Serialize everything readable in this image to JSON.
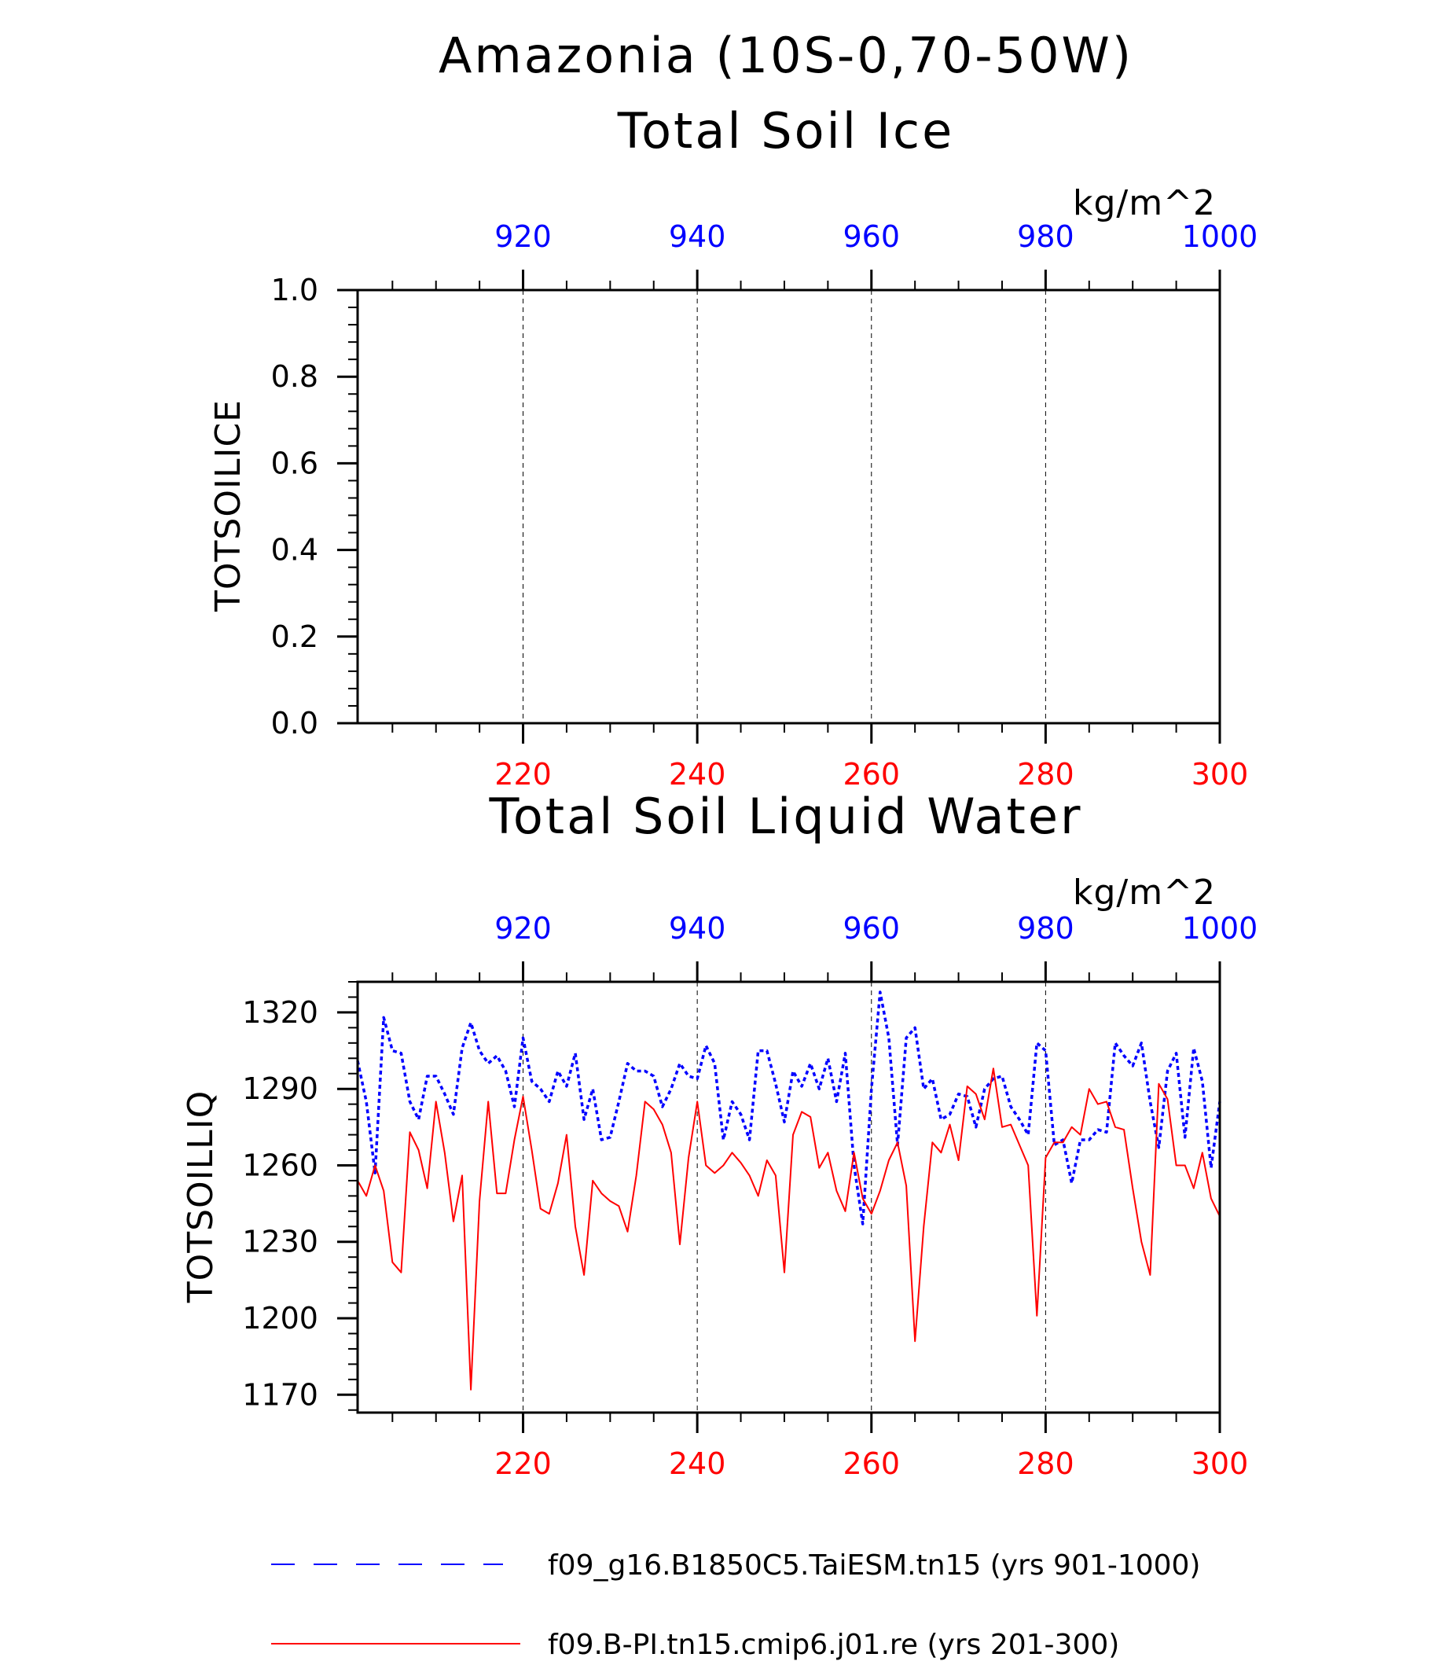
{
  "main_title": "Amazonia (10S-0,70-50W)",
  "colors": {
    "series_top_axis": "#0000ff",
    "series_bottom_axis": "#ff0000",
    "axes": "#000000"
  },
  "chart_data": [
    {
      "type": "line",
      "title": "Total Soil Ice",
      "units": "kg/m^2",
      "ylabel": "TOTSOILICE",
      "ylim": [
        0,
        1
      ],
      "yticks": [
        "0.0",
        "0.2",
        "0.4",
        "0.6",
        "0.8",
        "1.0"
      ],
      "x_bottom": {
        "range": [
          201,
          300
        ],
        "ticks": [
          220,
          240,
          260,
          280,
          300
        ]
      },
      "x_top": {
        "range": [
          901,
          1000
        ],
        "ticks": [
          920,
          940,
          960,
          980,
          1000
        ]
      },
      "grid": "dashed vertical lines at major x ticks",
      "series": []
    },
    {
      "type": "line",
      "title": "Total Soil Liquid Water",
      "units": "kg/m^2",
      "ylabel": "TOTSOILLIQ",
      "ylim": [
        1163,
        1332
      ],
      "yticks": [
        1170,
        1200,
        1230,
        1260,
        1290,
        1320
      ],
      "x_bottom": {
        "range": [
          201,
          300
        ],
        "ticks": [
          220,
          240,
          260,
          280,
          300
        ]
      },
      "x_top": {
        "range": [
          901,
          1000
        ],
        "ticks": [
          920,
          940,
          960,
          980,
          1000
        ]
      },
      "grid": "dashed vertical lines at major x ticks",
      "series": [
        {
          "name": "f09_g16.B1850C5.TaiESM.tn15 (yrs 901-1000)",
          "axis": "top",
          "style": "dashed",
          "color": "#0000ff",
          "x_start": 901,
          "values": [
            1301,
            1285,
            1257,
            1318,
            1305,
            1304,
            1285,
            1278,
            1295,
            1295,
            1288,
            1280,
            1306,
            1316,
            1305,
            1300,
            1303,
            1297,
            1283,
            1310,
            1293,
            1290,
            1285,
            1297,
            1291,
            1304,
            1278,
            1290,
            1270,
            1271,
            1285,
            1300,
            1297,
            1297,
            1295,
            1283,
            1290,
            1300,
            1295,
            1294,
            1307,
            1300,
            1270,
            1285,
            1280,
            1270,
            1305,
            1305,
            1292,
            1277,
            1297,
            1291,
            1300,
            1290,
            1302,
            1285,
            1304,
            1260,
            1237,
            1290,
            1328,
            1310,
            1268,
            1310,
            1314,
            1290,
            1294,
            1278,
            1280,
            1288,
            1287,
            1275,
            1290,
            1294,
            1295,
            1283,
            1278,
            1272,
            1308,
            1305,
            1268,
            1270,
            1253,
            1270,
            1270,
            1274,
            1273,
            1308,
            1303,
            1299,
            1308,
            1285,
            1267,
            1297,
            1304,
            1271,
            1306,
            1293,
            1259,
            1285
          ]
        },
        {
          "name": "f09.B-PI.tn15.cmip6.j01.re (yrs 201-300)",
          "axis": "bottom",
          "style": "solid",
          "color": "#ff0000",
          "x_start": 201,
          "values": [
            1254,
            1248,
            1260,
            1250,
            1222,
            1218,
            1273,
            1266,
            1251,
            1285,
            1265,
            1238,
            1256,
            1172,
            1246,
            1285,
            1249,
            1249,
            1270,
            1287,
            1266,
            1243,
            1241,
            1253,
            1272,
            1236,
            1217,
            1254,
            1249,
            1246,
            1244,
            1234,
            1256,
            1285,
            1282,
            1276,
            1265,
            1229,
            1263,
            1285,
            1260,
            1257,
            1260,
            1265,
            1261,
            1256,
            1248,
            1262,
            1256,
            1218,
            1272,
            1281,
            1279,
            1259,
            1265,
            1250,
            1242,
            1265,
            1247,
            1241,
            1250,
            1262,
            1269,
            1252,
            1191,
            1236,
            1269,
            1265,
            1276,
            1262,
            1291,
            1288,
            1278,
            1298,
            1275,
            1276,
            1268,
            1260,
            1201,
            1263,
            1269,
            1269,
            1275,
            1272,
            1290,
            1284,
            1285,
            1275,
            1274,
            1251,
            1230,
            1217,
            1292,
            1286,
            1260,
            1260,
            1251,
            1265,
            1247,
            1240
          ]
        }
      ]
    }
  ]
}
